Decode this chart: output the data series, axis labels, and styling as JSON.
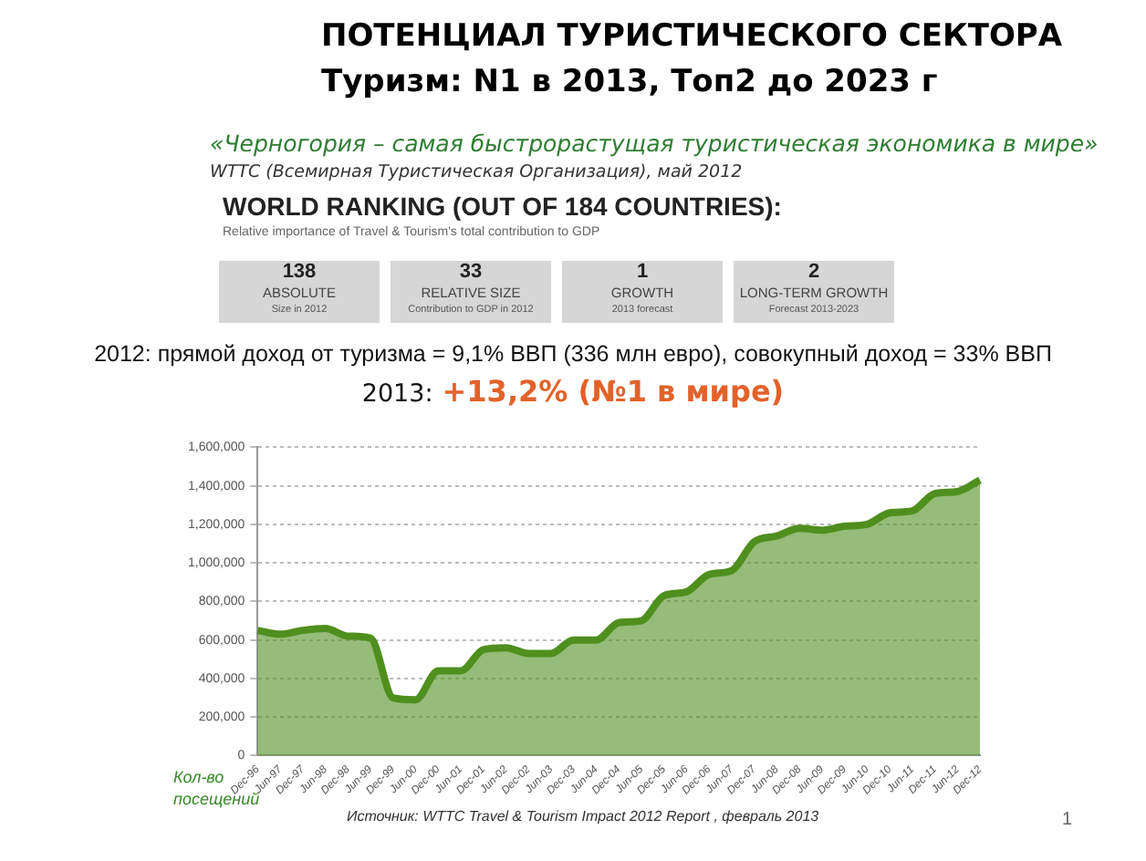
{
  "chart_data": {
    "type": "area",
    "title": "ПОТЕНЦИАЛ ТУРИСТИЧЕСКОГО СЕКТОРА",
    "subtitle": "Туризм: N1 в 2013, Топ2 до 2023 г",
    "ylabel": "Кол-во посещений",
    "annotations": [
      "«Черногория – самая быстрорастущая туристическая экономика в мире»",
      "WTTC (Всемирная Туристическая Организация), май 2012",
      "WORLD RANKING (OUT OF 184 COUNTRIES):",
      "Relative importance of Travel & Tourism's total contribution to GDP",
      "138",
      "ABSOLUTE",
      "Size in 2012",
      "33",
      "RELATIVE SIZE",
      "Contribution to GDP in 2012",
      "1",
      "GROWTH",
      "2013 forecast",
      "2",
      "LONG-TERM GROWTH",
      "Forecast 2013-2023",
      "2012: прямой доход от туризма = 9,1% ВВП (336 млн евро), совокупный доход = 33% ВВП",
      "2013:",
      "+13,2%  (№1 в мире)",
      "Источник:  WTTC Travel & Tourism Impact 2012 Report , февраль 2013",
      "1"
    ],
    "categories": [
      "Dec-96",
      "Jun-97",
      "Dec-97",
      "Jun-98",
      "Dec-98",
      "Jun-99",
      "Dec-99",
      "Jun-00",
      "Dec-00",
      "Jun-01",
      "Dec-01",
      "Jun-02",
      "Dec-02",
      "Jun-03",
      "Dec-03",
      "Jun-04",
      "Dec-04",
      "Jun-05",
      "Dec-05",
      "Jun-06",
      "Dec-06",
      "Jun-07",
      "Dec-07",
      "Jun-08",
      "Dec-08",
      "Jun-09",
      "Dec-09",
      "Jun-10",
      "Dec-10",
      "Jun-11",
      "Dec-11",
      "Jun-12",
      "Dec-12"
    ],
    "series": [
      {
        "color": "#4f8f1e",
        "values": [
          650000,
          630000,
          650000,
          660000,
          620000,
          610000,
          300000,
          290000,
          440000,
          440000,
          550000,
          560000,
          530000,
          530000,
          600000,
          600000,
          690000,
          700000,
          830000,
          850000,
          940000,
          960000,
          1110000,
          1140000,
          1180000,
          1170000,
          1190000,
          1200000,
          1260000,
          1270000,
          1360000,
          1370000,
          1430000
        ]
      }
    ],
    "ylim": [
      0,
      1600000
    ],
    "yticks": [
      {
        "value": 0,
        "label": "0"
      },
      {
        "value": 200000,
        "label": "200,000"
      },
      {
        "value": 400000,
        "label": "400,000"
      },
      {
        "value": 600000,
        "label": "600,000"
      },
      {
        "value": 800000,
        "label": "800,000"
      },
      {
        "value": 1000000,
        "label": "1,000,000"
      },
      {
        "value": 1200000,
        "label": "1,200,000"
      },
      {
        "value": 1400000,
        "label": "1,400,000"
      },
      {
        "value": 1600000,
        "label": "1,600,000"
      }
    ],
    "grid": "y",
    "legend": false,
    "marker": "none"
  }
}
